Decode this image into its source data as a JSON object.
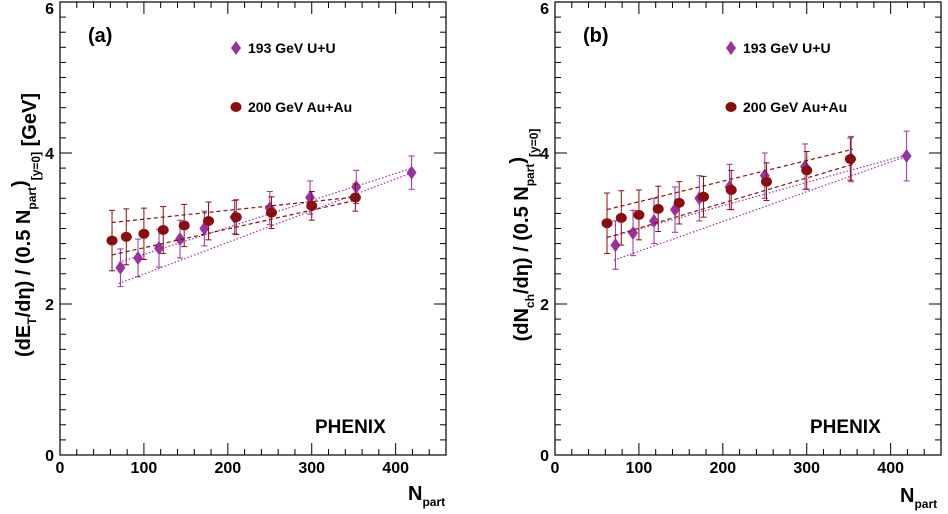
{
  "colors": {
    "uu": "#9b30a0",
    "auau": "#8b0d0d",
    "axis": "#000000"
  },
  "chart_data": [
    {
      "type": "scatter",
      "panel_label": "(a)",
      "watermark": "PHENIX",
      "ylabel": "(dE_T/dη) / (0.5 N_part)_[y=0] [GeV]",
      "ylabel_parts": [
        "(dE",
        "T",
        "/dη) / (0.5 N",
        "part",
        ")",
        "[y=0]",
        " [GeV]"
      ],
      "xlabel": "N_part",
      "xlabel_parts": [
        "N",
        "part"
      ],
      "xlim": [
        0,
        460
      ],
      "ylim": [
        0,
        6
      ],
      "x_ticks": [
        "0",
        "100",
        "200",
        "300",
        "400"
      ],
      "y_ticks": [
        "0",
        "2",
        "4",
        "6"
      ],
      "legend": {
        "position": "top-left",
        "entries": [
          "193 GeV U+U",
          "200 GeV Au+Au"
        ]
      },
      "series": [
        {
          "name": "193 GeV U+U",
          "marker": "diamond",
          "color": "#9b30a0",
          "points": [
            {
              "x": 72,
              "y": 2.48,
              "err": 0.25
            },
            {
              "x": 93,
              "y": 2.61,
              "err": 0.25
            },
            {
              "x": 118,
              "y": 2.74,
              "err": 0.25
            },
            {
              "x": 143,
              "y": 2.86,
              "err": 0.25
            },
            {
              "x": 172,
              "y": 3.0,
              "err": 0.23
            },
            {
              "x": 208,
              "y": 3.15,
              "err": 0.22
            },
            {
              "x": 250,
              "y": 3.27,
              "err": 0.22
            },
            {
              "x": 298,
              "y": 3.41,
              "err": 0.22
            },
            {
              "x": 353,
              "y": 3.55,
              "err": 0.22
            },
            {
              "x": 419,
              "y": 3.74,
              "err": 0.22
            }
          ],
          "band": {
            "low": [
              [
                70,
                2.27
              ],
              [
                420,
                3.74
              ]
            ],
            "high": [
              [
                70,
                2.55
              ],
              [
                420,
                3.8
              ]
            ]
          }
        },
        {
          "name": "200 GeV Au+Au",
          "marker": "circle",
          "color": "#8b0d0d",
          "points": [
            {
              "x": 62,
              "y": 2.84,
              "err": 0.4
            },
            {
              "x": 79,
              "y": 2.89,
              "err": 0.37
            },
            {
              "x": 100,
              "y": 2.93,
              "err": 0.34
            },
            {
              "x": 123,
              "y": 2.98,
              "err": 0.31
            },
            {
              "x": 148,
              "y": 3.04,
              "err": 0.28
            },
            {
              "x": 177,
              "y": 3.1,
              "err": 0.25
            },
            {
              "x": 210,
              "y": 3.15,
              "err": 0.23
            },
            {
              "x": 252,
              "y": 3.21,
              "err": 0.21
            },
            {
              "x": 300,
              "y": 3.3,
              "err": 0.19
            },
            {
              "x": 352,
              "y": 3.41,
              "err": 0.18
            }
          ],
          "band": {
            "low": [
              [
                62,
                2.65
              ],
              [
                355,
                3.38
              ]
            ],
            "high": [
              [
                62,
                3.08
              ],
              [
                355,
                3.42
              ]
            ]
          }
        }
      ]
    },
    {
      "type": "scatter",
      "panel_label": "(b)",
      "watermark": "PHENIX",
      "ylabel": "(dN_ch/dη) / (0.5 N_part)_[y=0]",
      "ylabel_parts": [
        "(dN",
        "ch",
        "/dη) / (0.5 N",
        "part",
        ")",
        "[y=0]",
        ""
      ],
      "xlabel": "N_part",
      "xlabel_parts": [
        "N",
        "part"
      ],
      "xlim": [
        0,
        460
      ],
      "ylim": [
        0,
        6
      ],
      "x_ticks": [
        "0",
        "100",
        "200",
        "300",
        "400"
      ],
      "y_ticks": [
        "0",
        "2",
        "4",
        "6"
      ],
      "legend": {
        "position": "top-left",
        "entries": [
          "193 GeV U+U",
          "200 GeV Au+Au"
        ]
      },
      "series": [
        {
          "name": "193 GeV U+U",
          "marker": "diamond",
          "color": "#9b30a0",
          "points": [
            {
              "x": 72,
              "y": 2.78,
              "err": 0.32
            },
            {
              "x": 93,
              "y": 2.94,
              "err": 0.3
            },
            {
              "x": 118,
              "y": 3.1,
              "err": 0.3
            },
            {
              "x": 143,
              "y": 3.25,
              "err": 0.3
            },
            {
              "x": 172,
              "y": 3.4,
              "err": 0.3
            },
            {
              "x": 208,
              "y": 3.55,
              "err": 0.3
            },
            {
              "x": 250,
              "y": 3.7,
              "err": 0.3
            },
            {
              "x": 298,
              "y": 3.82,
              "err": 0.3
            },
            {
              "x": 353,
              "y": 3.92,
              "err": 0.3
            },
            {
              "x": 419,
              "y": 3.96,
              "err": 0.33
            }
          ],
          "band": {
            "low": [
              [
                70,
                2.58
              ],
              [
                420,
                3.96
              ]
            ],
            "high": [
              [
                70,
                2.9
              ],
              [
                420,
                3.98
              ]
            ]
          }
        },
        {
          "name": "200 GeV Au+Au",
          "marker": "circle",
          "color": "#8b0d0d",
          "points": [
            {
              "x": 62,
              "y": 3.07,
              "err": 0.4
            },
            {
              "x": 79,
              "y": 3.14,
              "err": 0.36
            },
            {
              "x": 100,
              "y": 3.18,
              "err": 0.33
            },
            {
              "x": 123,
              "y": 3.26,
              "err": 0.3
            },
            {
              "x": 148,
              "y": 3.34,
              "err": 0.28
            },
            {
              "x": 177,
              "y": 3.42,
              "err": 0.27
            },
            {
              "x": 210,
              "y": 3.51,
              "err": 0.26
            },
            {
              "x": 252,
              "y": 3.62,
              "err": 0.25
            },
            {
              "x": 300,
              "y": 3.77,
              "err": 0.25
            },
            {
              "x": 352,
              "y": 3.92,
              "err": 0.28
            }
          ],
          "band": {
            "low": [
              [
                62,
                2.88
              ],
              [
                355,
                3.85
              ]
            ],
            "high": [
              [
                62,
                3.25
              ],
              [
                355,
                4.05
              ]
            ]
          }
        }
      ]
    }
  ]
}
